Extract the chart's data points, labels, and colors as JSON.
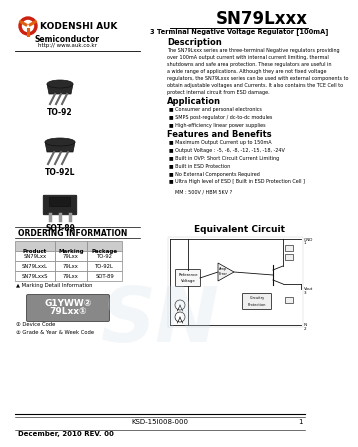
{
  "title": "SN79Lxxx",
  "subtitle": "3 Terminal Negative Voltage Regulator [100mA]",
  "company": "KODENSHI AUK",
  "website": "http:// www.auk.co.kr",
  "semiconductor": "Semiconductor",
  "description_title": "Description",
  "description_text": [
    "The SN79Lxxx series are three-terminal Negative regulators providing",
    "over 100mA output current with internal current limiting, thermal",
    "shutdowns and safe area protection. These regulators are useful in",
    "a wide range of applications. Although they are not fixed voltage",
    "regulators, the SN79Lxxx series can be used with external components to",
    "obtain adjustable voltages and Currents. It also contains the TCE Cell to",
    "protect internal circuit from ESD damage."
  ],
  "application_title": "Application",
  "application_items": [
    "Consumer and personal electronics",
    "SMPS post-regulator / dc-to-dc modules",
    "High-efficiency linear power supplies"
  ],
  "features_title": "Features and Benefits",
  "features_items": [
    "Maximum Output Current up to 150mA",
    "Output Voltage : -5, -6, -8, -12, -15, -18, -24V",
    "Built in OVP: Short Circuit Current Limiting",
    "Built in ESD Protection",
    "No External Components Required",
    "Ultra High level of ESD [ Built in ESD Protection Cell ]"
  ],
  "esd_text": "MM : 500V / HBM 5KV ?",
  "ordering_title": "ORDERING INFORMATION",
  "table_headers": [
    "Product",
    "Marking",
    "Package"
  ],
  "table_rows": [
    [
      "SN79Lxx",
      "79Lxx",
      "TO-92"
    ],
    [
      "SN79LxxL",
      "79Lxx",
      "TO-92L"
    ],
    [
      "SN79LxxS",
      "79Lxx",
      "SOT-89"
    ]
  ],
  "marking_note": "▲ Marking Detail Information",
  "marking_box_line1": "79Lxx①",
  "marking_box_line2": "G1YWW②",
  "marking_note1": "① Device Code",
  "marking_note2": "② Grade & Year & Week Code",
  "equivalent_title": "Equivalent Circuit",
  "footer_doc": "KSD-15I008-000",
  "footer_page": "1",
  "footer_date": "December, 2010 REV. 00",
  "bg_color": "#ffffff",
  "table_header_bg": "#cccccc",
  "table_border_color": "#888888",
  "marking_box_bg": "#888888",
  "logo_red": "#cc2010",
  "logo_orange": "#e06010",
  "logo_white": "#ffffff"
}
